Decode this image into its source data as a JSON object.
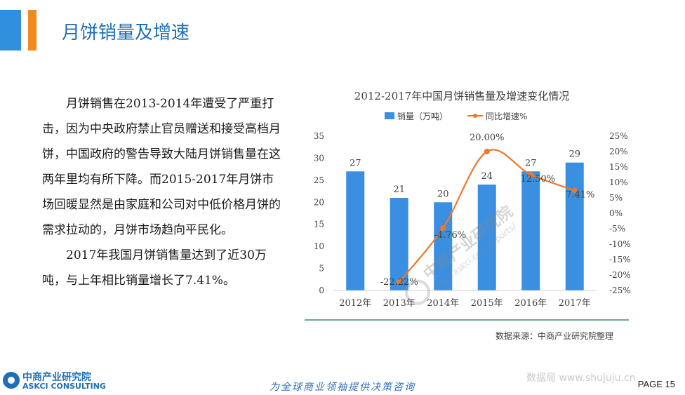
{
  "header": {
    "title": "月饼销量及增速"
  },
  "body": {
    "paragraphs": [
      "月饼销售在2013-2014年遭受了严重打击，因为中央政府禁止官员赠送和接受高档月饼，中国政府的警告导致大陆月饼销售量在这两年里均有所下降。而2015-2017年月饼市场回暖显然是由家庭和公司对中低价格月饼的需求拉动的，月饼市场趋向平民化。",
      "2017年我国月饼销售量达到了近30万吨，与上年相比销量增长了7.41%。"
    ]
  },
  "chart_data": {
    "type": "bar",
    "title": "2012-2017年中国月饼销售量及增速变化情况",
    "categories": [
      "2012年",
      "2013年",
      "2014年",
      "2015年",
      "2016年",
      "2017年"
    ],
    "series": [
      {
        "name": "销量（万吨）",
        "type": "bar",
        "axis": "left",
        "color": "#3a8fe0",
        "values": [
          27,
          21,
          20,
          24,
          27,
          29
        ],
        "labels": [
          "27",
          "21",
          "20",
          "24",
          "27",
          "29"
        ]
      },
      {
        "name": "同比增速%",
        "type": "line",
        "axis": "right",
        "color": "#f0782a",
        "values": [
          null,
          -22.22,
          -4.76,
          20.0,
          12.5,
          7.41
        ],
        "labels": [
          "",
          "-22.22%",
          "-4.76%",
          "20.00%",
          "12.50%",
          "7.41%"
        ]
      }
    ],
    "ylim_left": [
      0,
      35
    ],
    "yticks_left": [
      "0",
      "5",
      "10",
      "15",
      "20",
      "25",
      "30",
      "35"
    ],
    "ylim_right": [
      -25,
      25
    ],
    "yticks_right": [
      "-25%",
      "-20%",
      "-15%",
      "-10%",
      "-5%",
      "0%",
      "5%",
      "10%",
      "15%",
      "20%",
      "25%"
    ],
    "legend_position": "top",
    "grid": false,
    "source": "数据来源：中商产业研究院整理"
  },
  "watermark": {
    "diagonal": "中商产业研究院",
    "url": "www.askci.com/reports/"
  },
  "footer": {
    "logo_cn": "中商产业研究院",
    "logo_en": "ASKCI CONSULTING",
    "slogan": "为全球商业领袖提供决策咨询",
    "corner_watermark": "数据局 www.shujuju.cn",
    "page": "PAGE 15"
  }
}
